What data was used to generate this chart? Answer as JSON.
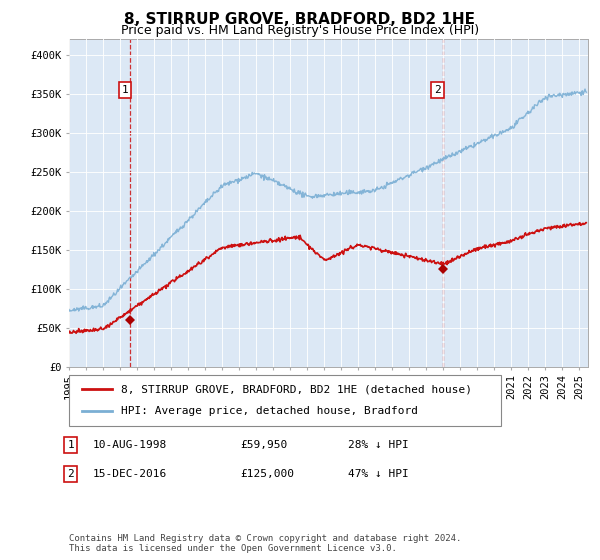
{
  "title": "8, STIRRUP GROVE, BRADFORD, BD2 1HE",
  "subtitle": "Price paid vs. HM Land Registry's House Price Index (HPI)",
  "ylim": [
    0,
    420000
  ],
  "yticks": [
    0,
    50000,
    100000,
    150000,
    200000,
    250000,
    300000,
    350000,
    400000
  ],
  "ytick_labels": [
    "£0",
    "£50K",
    "£100K",
    "£150K",
    "£200K",
    "£250K",
    "£300K",
    "£350K",
    "£400K"
  ],
  "xlim_start": 1995.0,
  "xlim_end": 2025.5,
  "xtick_years": [
    1995,
    1996,
    1997,
    1998,
    1999,
    2000,
    2001,
    2002,
    2003,
    2004,
    2005,
    2006,
    2007,
    2008,
    2009,
    2010,
    2011,
    2012,
    2013,
    2014,
    2015,
    2016,
    2017,
    2018,
    2019,
    2020,
    2021,
    2022,
    2023,
    2024,
    2025
  ],
  "hpi_color": "#7bafd4",
  "price_color": "#cc1111",
  "marker_color": "#aa0000",
  "vline_color": "#cc1111",
  "plot_bg": "#dce8f5",
  "sale1_x": 1998.61,
  "sale1_y": 59950,
  "sale2_x": 2016.96,
  "sale2_y": 125000,
  "sale1_label": "10-AUG-1998",
  "sale1_price": "£59,950",
  "sale1_hpi": "28% ↓ HPI",
  "sale2_label": "15-DEC-2016",
  "sale2_price": "£125,000",
  "sale2_hpi": "47% ↓ HPI",
  "legend_line1": "8, STIRRUP GROVE, BRADFORD, BD2 1HE (detached house)",
  "legend_line2": "HPI: Average price, detached house, Bradford",
  "footnote": "Contains HM Land Registry data © Crown copyright and database right 2024.\nThis data is licensed under the Open Government Licence v3.0.",
  "title_fontsize": 11,
  "subtitle_fontsize": 9,
  "tick_fontsize": 7.5,
  "legend_fontsize": 8,
  "footnote_fontsize": 6.5
}
